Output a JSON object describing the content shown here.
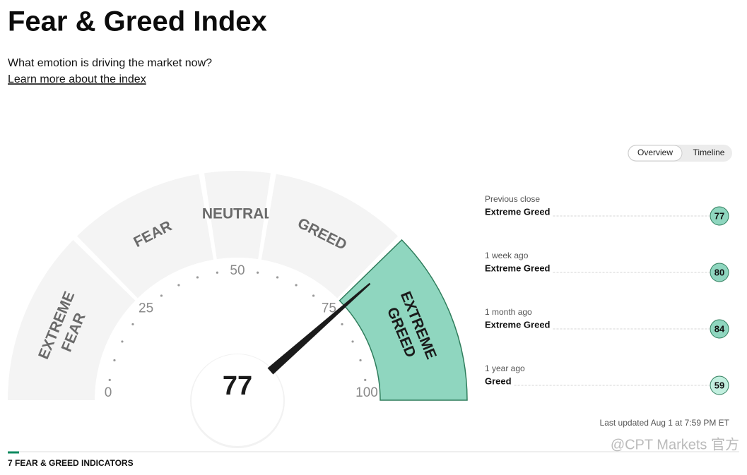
{
  "header": {
    "title": "Fear & Greed Index",
    "subtitle": "What emotion is driving the market now?",
    "link": "Learn more about the index"
  },
  "tabs": [
    {
      "label": "Overview",
      "selected": true
    },
    {
      "label": "Timeline",
      "selected": false
    }
  ],
  "gauge": {
    "value": 77,
    "range": [
      0,
      100
    ],
    "ticks": [
      0,
      25,
      50,
      75,
      100
    ],
    "segments": [
      {
        "label": [
          "EXTREME",
          "FEAR"
        ],
        "from": 0,
        "to": 25
      },
      {
        "label": [
          "FEAR"
        ],
        "from": 25,
        "to": 45
      },
      {
        "label": [
          "NEUTRAL"
        ],
        "from": 45,
        "to": 55
      },
      {
        "label": [
          "GREED"
        ],
        "from": 55,
        "to": 75
      },
      {
        "label": [
          "EXTREME",
          "GREED"
        ],
        "from": 75,
        "to": 100
      }
    ],
    "color": "#8fd6bf",
    "idle_color": "#f4f4f4"
  },
  "history": [
    {
      "period": "Previous close",
      "rating": "Extreme Greed",
      "value": 77,
      "color": "#8fd6bf"
    },
    {
      "period": "1 week ago",
      "rating": "Extreme Greed",
      "value": 80,
      "color": "#8fd6bf"
    },
    {
      "period": "1 month ago",
      "rating": "Extreme Greed",
      "value": 84,
      "color": "#8fd6bf"
    },
    {
      "period": "1 year ago",
      "rating": "Greed",
      "value": 59,
      "color": "#c2efdf"
    }
  ],
  "last_updated": "Last updated Aug 1 at 7:59 PM ET",
  "section_title": "7 FEAR & GREED INDICATORS",
  "watermark": "@CPT Markets 官方"
}
